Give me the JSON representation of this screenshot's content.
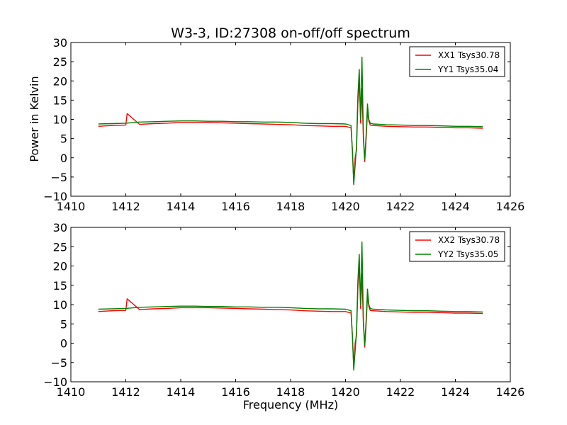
{
  "title": "W3-3, ID:27308 on-off/off spectrum",
  "ylabel": "Power in Kelvin",
  "xlabel": "Frequency (MHz)",
  "chart_data": [
    {
      "type": "line",
      "xlim": [
        1410,
        1426
      ],
      "ylim": [
        -10,
        30
      ],
      "xticks": [
        1410,
        1412,
        1414,
        1416,
        1418,
        1420,
        1422,
        1424,
        1426
      ],
      "yticks": [
        -10,
        -5,
        0,
        5,
        10,
        15,
        20,
        25,
        30
      ],
      "legend_position": "top-right",
      "series": [
        {
          "name": "XX1 Tsys30.78",
          "color": "#ff0000",
          "x": [
            1411.0,
            1411.5,
            1412.0,
            1412.05,
            1412.5,
            1413.0,
            1413.5,
            1414.0,
            1414.5,
            1415.0,
            1415.5,
            1416.0,
            1416.5,
            1417.0,
            1417.5,
            1418.0,
            1418.5,
            1419.0,
            1419.5,
            1420.0,
            1420.2,
            1420.25,
            1420.3,
            1420.35,
            1420.4,
            1420.45,
            1420.5,
            1420.55,
            1420.6,
            1420.65,
            1420.7,
            1420.75,
            1420.8,
            1420.85,
            1420.9,
            1421.0,
            1421.5,
            1422.0,
            1422.5,
            1423.0,
            1423.5,
            1424.0,
            1424.5,
            1425.0
          ],
          "y": [
            8.2,
            8.4,
            8.5,
            11.5,
            8.7,
            8.9,
            9.0,
            9.2,
            9.2,
            9.2,
            9.1,
            9.0,
            8.9,
            8.8,
            8.7,
            8.6,
            8.4,
            8.3,
            8.2,
            8.2,
            7.8,
            2.0,
            -6.0,
            0.0,
            2.0,
            14.0,
            20.5,
            9.0,
            18.0,
            5.0,
            -1.0,
            5.0,
            12.0,
            9.5,
            8.5,
            8.4,
            8.2,
            8.1,
            8.0,
            8.0,
            7.9,
            7.8,
            7.8,
            7.7
          ]
        },
        {
          "name": "YY1 Tsys35.04",
          "color": "#008000",
          "x": [
            1411.0,
            1411.5,
            1412.0,
            1412.5,
            1413.0,
            1413.5,
            1414.0,
            1414.5,
            1415.0,
            1415.5,
            1416.0,
            1416.5,
            1417.0,
            1417.5,
            1418.0,
            1418.5,
            1419.0,
            1419.5,
            1420.0,
            1420.2,
            1420.25,
            1420.3,
            1420.35,
            1420.4,
            1420.45,
            1420.5,
            1420.55,
            1420.6,
            1420.65,
            1420.7,
            1420.75,
            1420.8,
            1420.85,
            1420.9,
            1421.0,
            1421.5,
            1422.0,
            1422.5,
            1423.0,
            1423.5,
            1424.0,
            1424.5,
            1425.0
          ],
          "y": [
            8.8,
            8.9,
            9.0,
            9.3,
            9.4,
            9.5,
            9.6,
            9.6,
            9.5,
            9.5,
            9.4,
            9.4,
            9.3,
            9.3,
            9.2,
            9.0,
            8.9,
            8.9,
            8.8,
            8.4,
            2.0,
            -7.0,
            -2.0,
            3.0,
            16.0,
            23.0,
            10.0,
            26.2,
            6.0,
            -0.5,
            6.0,
            14.0,
            10.0,
            9.0,
            8.8,
            8.6,
            8.5,
            8.4,
            8.4,
            8.3,
            8.2,
            8.2,
            8.1
          ]
        }
      ]
    },
    {
      "type": "line",
      "xlim": [
        1410,
        1426
      ],
      "ylim": [
        -10,
        30
      ],
      "xticks": [
        1410,
        1412,
        1414,
        1416,
        1418,
        1420,
        1422,
        1424,
        1426
      ],
      "yticks": [
        -10,
        -5,
        0,
        5,
        10,
        15,
        20,
        25,
        30
      ],
      "legend_position": "top-right",
      "series": [
        {
          "name": "XX2 Tsys30.78",
          "color": "#ff0000",
          "x": [
            1411.0,
            1411.5,
            1412.0,
            1412.05,
            1412.5,
            1413.0,
            1413.5,
            1414.0,
            1414.5,
            1415.0,
            1415.5,
            1416.0,
            1416.5,
            1417.0,
            1417.5,
            1418.0,
            1418.5,
            1419.0,
            1419.5,
            1420.0,
            1420.2,
            1420.25,
            1420.3,
            1420.35,
            1420.4,
            1420.45,
            1420.5,
            1420.55,
            1420.6,
            1420.65,
            1420.7,
            1420.75,
            1420.8,
            1420.85,
            1420.9,
            1421.0,
            1421.5,
            1422.0,
            1422.5,
            1423.0,
            1423.5,
            1424.0,
            1424.5,
            1425.0
          ],
          "y": [
            8.2,
            8.4,
            8.5,
            11.5,
            8.7,
            8.9,
            9.0,
            9.2,
            9.2,
            9.2,
            9.1,
            9.0,
            8.9,
            8.8,
            8.7,
            8.6,
            8.4,
            8.3,
            8.2,
            8.2,
            7.8,
            2.0,
            -6.0,
            0.0,
            2.0,
            14.0,
            20.5,
            9.0,
            18.0,
            5.0,
            -1.0,
            5.0,
            12.0,
            9.5,
            8.5,
            8.4,
            8.2,
            8.1,
            8.0,
            8.0,
            7.9,
            7.8,
            7.8,
            7.7
          ]
        },
        {
          "name": "YY2 Tsys35.05",
          "color": "#008000",
          "x": [
            1411.0,
            1411.5,
            1412.0,
            1412.5,
            1413.0,
            1413.5,
            1414.0,
            1414.5,
            1415.0,
            1415.5,
            1416.0,
            1416.5,
            1417.0,
            1417.5,
            1418.0,
            1418.5,
            1419.0,
            1419.5,
            1420.0,
            1420.2,
            1420.25,
            1420.3,
            1420.35,
            1420.4,
            1420.45,
            1420.5,
            1420.55,
            1420.6,
            1420.65,
            1420.7,
            1420.75,
            1420.8,
            1420.85,
            1420.9,
            1421.0,
            1421.5,
            1422.0,
            1422.5,
            1423.0,
            1423.5,
            1424.0,
            1424.5,
            1425.0
          ],
          "y": [
            8.8,
            8.9,
            9.0,
            9.3,
            9.4,
            9.5,
            9.6,
            9.6,
            9.5,
            9.5,
            9.4,
            9.4,
            9.3,
            9.3,
            9.2,
            9.0,
            8.9,
            8.9,
            8.8,
            8.4,
            2.0,
            -7.0,
            -2.0,
            3.0,
            16.0,
            23.0,
            10.0,
            26.2,
            6.0,
            -0.5,
            6.0,
            14.0,
            10.0,
            9.0,
            8.8,
            8.6,
            8.5,
            8.4,
            8.4,
            8.3,
            8.2,
            8.2,
            8.1
          ]
        }
      ]
    }
  ]
}
